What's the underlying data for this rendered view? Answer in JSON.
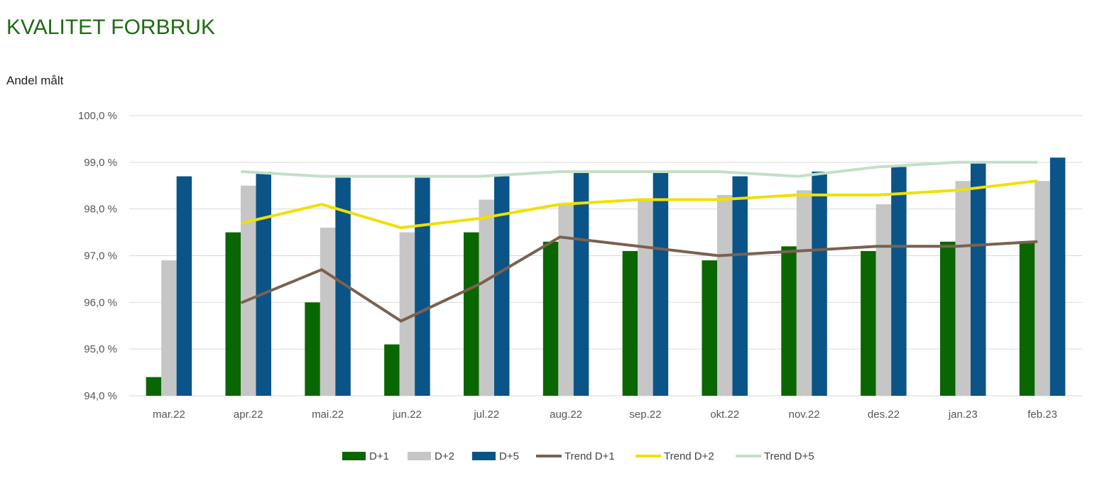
{
  "title": "KVALITET FORBRUK",
  "subtitle": "Andel målt",
  "colors": {
    "title": "#1e6b12",
    "D+1": "#0a6600",
    "D+2": "#c6c6c6",
    "D+5": "#0a5488",
    "Trend D+1": "#7a6150",
    "Trend D+2": "#f0e000",
    "Trend D+5": "#c2e0c6",
    "grid": "#d9d9d9"
  },
  "chart_data": {
    "type": "bar",
    "categories": [
      "mar.22",
      "apr.22",
      "mai.22",
      "jun.22",
      "jul.22",
      "aug.22",
      "sep.22",
      "okt.22",
      "nov.22",
      "des.22",
      "jan.23",
      "feb.23"
    ],
    "ylim": [
      94.0,
      100.0
    ],
    "yticks": [
      {
        "value": 94.0,
        "label": "94,0 %"
      },
      {
        "value": 95.0,
        "label": "95,0 %"
      },
      {
        "value": 96.0,
        "label": "96,0 %"
      },
      {
        "value": 97.0,
        "label": "97,0 %"
      },
      {
        "value": 98.0,
        "label": "98,0 %"
      },
      {
        "value": 99.0,
        "label": "99,0 %"
      },
      {
        "value": 100.0,
        "label": "100,0 %"
      }
    ],
    "grid": true,
    "legend_position": "bottom",
    "bar_series": [
      {
        "name": "D+1",
        "values": [
          94.4,
          97.5,
          96.0,
          95.1,
          97.5,
          97.3,
          97.1,
          96.9,
          97.2,
          97.1,
          97.3,
          97.3
        ]
      },
      {
        "name": "D+2",
        "values": [
          96.9,
          98.5,
          97.6,
          97.5,
          98.2,
          98.1,
          98.2,
          98.3,
          98.4,
          98.1,
          98.6,
          98.6
        ]
      },
      {
        "name": "D+5",
        "values": [
          98.7,
          98.8,
          98.7,
          98.7,
          98.7,
          98.8,
          98.8,
          98.7,
          98.8,
          98.9,
          99.0,
          99.1
        ]
      }
    ],
    "line_series": [
      {
        "name": "Trend D+1",
        "values": [
          null,
          96.0,
          96.7,
          95.6,
          96.4,
          97.4,
          97.2,
          97.0,
          97.1,
          97.2,
          97.2,
          97.3
        ]
      },
      {
        "name": "Trend D+2",
        "values": [
          null,
          97.7,
          98.1,
          97.6,
          97.8,
          98.1,
          98.2,
          98.2,
          98.3,
          98.3,
          98.4,
          98.6
        ]
      },
      {
        "name": "Trend D+5",
        "values": [
          null,
          98.8,
          98.7,
          98.7,
          98.7,
          98.8,
          98.8,
          98.8,
          98.7,
          98.9,
          99.0,
          99.0
        ]
      }
    ],
    "legend": [
      "D+1",
      "D+2",
      "D+5",
      "Trend D+1",
      "Trend D+2",
      "Trend D+5"
    ]
  }
}
